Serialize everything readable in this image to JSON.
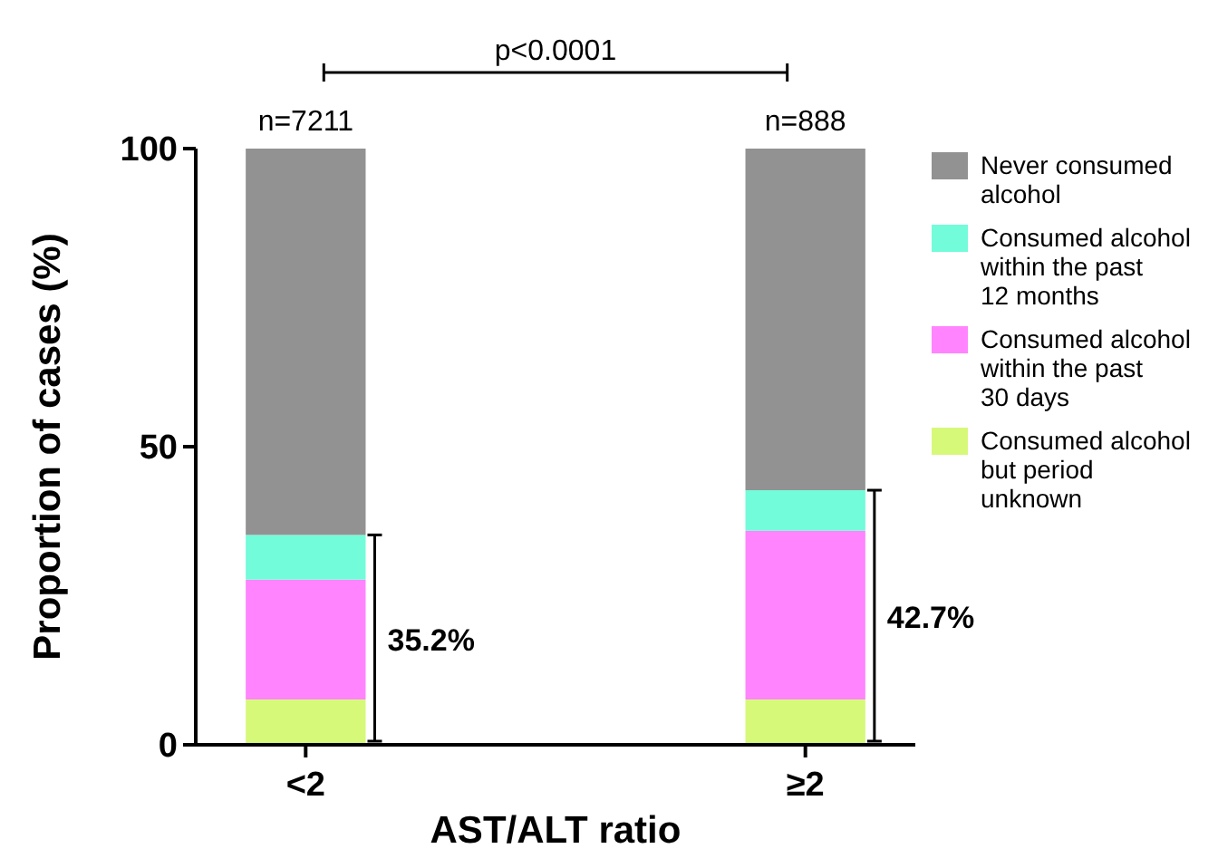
{
  "chart_data": {
    "type": "bar",
    "stacked": true,
    "xlabel": "AST/ALT ratio",
    "ylabel": "Proportion of cases (%)",
    "categories": [
      "<2",
      "≥2"
    ],
    "series": [
      {
        "name": "Consumed alcohol but period unknown",
        "color": "#d7f97a",
        "values": [
          7.6,
          7.6
        ]
      },
      {
        "name": "Consumed alcohol within the past 30 days",
        "color": "#ff84fe",
        "values": [
          20.1,
          28.3
        ]
      },
      {
        "name": "Consumed alcohol within the past 12 months",
        "color": "#72fcd9",
        "values": [
          7.5,
          6.8
        ]
      },
      {
        "name": "Never consumed alcohol",
        "color": "#929292",
        "values": [
          64.8,
          57.3
        ]
      }
    ],
    "ylim": [
      0,
      100
    ],
    "yticks": [
      0,
      50,
      100
    ],
    "grid": false,
    "legend": "right",
    "annotations": [
      {
        "text": "n=7211",
        "x": "<2",
        "y": 100
      },
      {
        "text": "n=888",
        "x": "≥2",
        "y": 100
      },
      "35.2%",
      "42.7%",
      "p<0.0001"
    ]
  }
}
